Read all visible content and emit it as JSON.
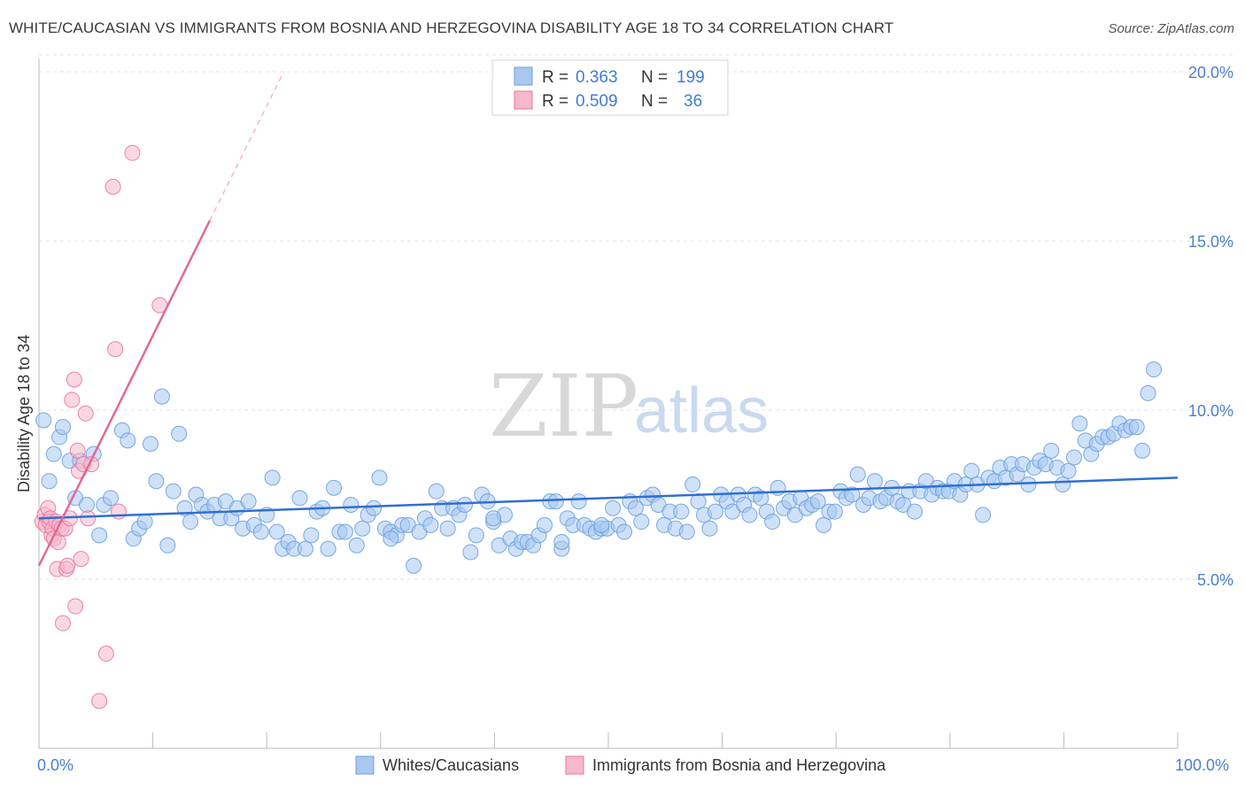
{
  "header": {
    "title": "WHITE/CAUCASIAN VS IMMIGRANTS FROM BOSNIA AND HERZEGOVINA DISABILITY AGE 18 TO 34 CORRELATION CHART",
    "source": "Source: ZipAtlas.com"
  },
  "watermark": {
    "zip": "ZIP",
    "atlas": "atlas"
  },
  "legend": {
    "rows": [
      {
        "r_label": "R =",
        "r_value": "0.363",
        "n_label": "N =",
        "n_value": "199",
        "color": "#a8c8f0"
      },
      {
        "r_label": "R =",
        "r_value": "0.509",
        "n_label": "N =",
        "n_value": "36",
        "color": "#f6b8cb"
      }
    ]
  },
  "bottom_legend": {
    "items": [
      {
        "label": "Whites/Caucasians",
        "color": "#a8c8f0"
      },
      {
        "label": "Immigrants from Bosnia and Herzegovina",
        "color": "#f6b8cb"
      }
    ]
  },
  "chart_data": {
    "type": "scatter",
    "title": "WHITE/CAUCASIAN VS IMMIGRANTS FROM BOSNIA AND HERZEGOVINA DISABILITY AGE 18 TO 34 CORRELATION CHART",
    "xlabel": "",
    "ylabel": "Disability Age 18 to 34",
    "xlim": [
      0,
      100
    ],
    "ylim": [
      0,
      20.5
    ],
    "x_tick_labels": [
      "0.0%",
      "100.0%"
    ],
    "y_ticks": [
      5,
      10,
      15,
      20
    ],
    "y_tick_labels": [
      "5.0%",
      "10.0%",
      "15.0%",
      "20.0%"
    ],
    "grid": true,
    "legend_position": "top-center",
    "series": [
      {
        "name": "Whites/Caucasians",
        "color": "#6a9fe0",
        "fill": "#a8c8f0",
        "trend": {
          "x": [
            0,
            100
          ],
          "y": [
            6.8,
            8.0
          ]
        },
        "points": [
          [
            0.4,
            9.7
          ],
          [
            0.9,
            7.9
          ],
          [
            1.3,
            8.7
          ],
          [
            1.8,
            9.2
          ],
          [
            2.1,
            9.5
          ],
          [
            2.7,
            8.5
          ],
          [
            3.2,
            7.4
          ],
          [
            3.6,
            8.5
          ],
          [
            4.2,
            7.2
          ],
          [
            4.8,
            8.7
          ],
          [
            5.3,
            6.3
          ],
          [
            5.7,
            7.2
          ],
          [
            6.3,
            7.4
          ],
          [
            7.3,
            9.4
          ],
          [
            7.8,
            9.1
          ],
          [
            8.3,
            6.2
          ],
          [
            8.8,
            6.5
          ],
          [
            9.3,
            6.7
          ],
          [
            9.8,
            9.0
          ],
          [
            10.3,
            7.9
          ],
          [
            10.8,
            10.4
          ],
          [
            11.3,
            6.0
          ],
          [
            11.8,
            7.6
          ],
          [
            12.3,
            9.3
          ],
          [
            12.8,
            7.1
          ],
          [
            13.3,
            6.7
          ],
          [
            13.8,
            7.5
          ],
          [
            14.3,
            7.2
          ],
          [
            14.8,
            7.0
          ],
          [
            15.4,
            7.2
          ],
          [
            15.9,
            6.8
          ],
          [
            16.4,
            7.3
          ],
          [
            16.9,
            6.8
          ],
          [
            17.4,
            7.1
          ],
          [
            17.9,
            6.5
          ],
          [
            18.4,
            7.3
          ],
          [
            18.9,
            6.6
          ],
          [
            19.5,
            6.4
          ],
          [
            20.0,
            6.9
          ],
          [
            20.5,
            8.0
          ],
          [
            20.9,
            6.4
          ],
          [
            21.4,
            5.9
          ],
          [
            21.9,
            6.1
          ],
          [
            22.4,
            5.9
          ],
          [
            22.9,
            7.4
          ],
          [
            23.4,
            5.9
          ],
          [
            23.9,
            6.3
          ],
          [
            24.4,
            7.0
          ],
          [
            24.9,
            7.1
          ],
          [
            25.4,
            5.9
          ],
          [
            25.9,
            7.7
          ],
          [
            26.4,
            6.4
          ],
          [
            26.9,
            6.4
          ],
          [
            27.4,
            7.2
          ],
          [
            27.9,
            6.0
          ],
          [
            28.4,
            6.5
          ],
          [
            28.9,
            6.9
          ],
          [
            29.4,
            7.1
          ],
          [
            29.9,
            8.0
          ],
          [
            30.4,
            6.5
          ],
          [
            30.9,
            6.4
          ],
          [
            31.4,
            6.3
          ],
          [
            31.9,
            6.6
          ],
          [
            32.4,
            6.6
          ],
          [
            32.9,
            5.4
          ],
          [
            33.4,
            6.4
          ],
          [
            33.9,
            6.8
          ],
          [
            34.4,
            6.6
          ],
          [
            34.9,
            7.6
          ],
          [
            35.4,
            7.1
          ],
          [
            35.9,
            6.5
          ],
          [
            36.4,
            7.1
          ],
          [
            36.9,
            6.9
          ],
          [
            37.4,
            7.2
          ],
          [
            37.9,
            5.8
          ],
          [
            38.4,
            6.3
          ],
          [
            38.9,
            7.5
          ],
          [
            39.4,
            7.3
          ],
          [
            39.9,
            6.7
          ],
          [
            40.4,
            6.0
          ],
          [
            40.9,
            6.9
          ],
          [
            41.4,
            6.2
          ],
          [
            41.9,
            5.9
          ],
          [
            42.4,
            6.1
          ],
          [
            42.9,
            6.1
          ],
          [
            43.4,
            6.0
          ],
          [
            43.9,
            6.3
          ],
          [
            44.4,
            6.6
          ],
          [
            44.9,
            7.3
          ],
          [
            45.4,
            7.3
          ],
          [
            45.9,
            5.9
          ],
          [
            46.4,
            6.8
          ],
          [
            46.9,
            6.6
          ],
          [
            47.4,
            7.3
          ],
          [
            47.9,
            6.6
          ],
          [
            48.4,
            6.5
          ],
          [
            48.9,
            6.4
          ],
          [
            49.4,
            6.5
          ],
          [
            49.9,
            6.5
          ],
          [
            50.4,
            7.1
          ],
          [
            50.9,
            6.6
          ],
          [
            51.4,
            6.4
          ],
          [
            51.9,
            7.3
          ],
          [
            52.4,
            7.1
          ],
          [
            52.9,
            6.7
          ],
          [
            53.4,
            7.4
          ],
          [
            53.9,
            7.5
          ],
          [
            54.4,
            7.2
          ],
          [
            54.9,
            6.6
          ],
          [
            55.4,
            7.0
          ],
          [
            55.9,
            6.5
          ],
          [
            56.4,
            7.0
          ],
          [
            56.9,
            6.4
          ],
          [
            57.4,
            7.8
          ],
          [
            57.9,
            7.3
          ],
          [
            58.4,
            6.9
          ],
          [
            58.9,
            6.5
          ],
          [
            59.4,
            7.0
          ],
          [
            59.9,
            7.5
          ],
          [
            60.4,
            7.3
          ],
          [
            60.9,
            7.0
          ],
          [
            61.4,
            7.5
          ],
          [
            61.9,
            7.2
          ],
          [
            62.4,
            6.9
          ],
          [
            62.9,
            7.5
          ],
          [
            63.4,
            7.4
          ],
          [
            63.9,
            7.0
          ],
          [
            64.4,
            6.7
          ],
          [
            64.9,
            7.7
          ],
          [
            65.4,
            7.1
          ],
          [
            65.9,
            7.3
          ],
          [
            66.4,
            6.9
          ],
          [
            66.9,
            7.4
          ],
          [
            67.4,
            7.1
          ],
          [
            67.9,
            7.2
          ],
          [
            68.4,
            7.3
          ],
          [
            68.9,
            6.6
          ],
          [
            69.4,
            7.0
          ],
          [
            69.9,
            7.0
          ],
          [
            70.4,
            7.6
          ],
          [
            70.9,
            7.4
          ],
          [
            71.4,
            7.5
          ],
          [
            71.9,
            8.1
          ],
          [
            72.4,
            7.2
          ],
          [
            72.9,
            7.4
          ],
          [
            73.4,
            7.9
          ],
          [
            73.9,
            7.3
          ],
          [
            74.4,
            7.4
          ],
          [
            74.9,
            7.7
          ],
          [
            75.4,
            7.3
          ],
          [
            75.9,
            7.2
          ],
          [
            76.4,
            7.6
          ],
          [
            76.9,
            7.0
          ],
          [
            77.4,
            7.6
          ],
          [
            77.9,
            7.9
          ],
          [
            78.4,
            7.5
          ],
          [
            78.9,
            7.7
          ],
          [
            79.4,
            7.6
          ],
          [
            79.9,
            7.6
          ],
          [
            80.4,
            7.9
          ],
          [
            80.9,
            7.5
          ],
          [
            81.4,
            7.8
          ],
          [
            81.9,
            8.2
          ],
          [
            82.4,
            7.8
          ],
          [
            82.9,
            6.9
          ],
          [
            83.4,
            8.0
          ],
          [
            83.9,
            7.9
          ],
          [
            84.4,
            8.3
          ],
          [
            84.9,
            8.0
          ],
          [
            85.4,
            8.4
          ],
          [
            85.9,
            8.1
          ],
          [
            86.4,
            8.4
          ],
          [
            86.9,
            7.8
          ],
          [
            87.4,
            8.3
          ],
          [
            87.9,
            8.5
          ],
          [
            88.4,
            8.4
          ],
          [
            88.9,
            8.8
          ],
          [
            89.4,
            8.3
          ],
          [
            89.9,
            7.8
          ],
          [
            90.4,
            8.2
          ],
          [
            90.9,
            8.6
          ],
          [
            91.4,
            9.6
          ],
          [
            91.9,
            9.1
          ],
          [
            92.4,
            8.7
          ],
          [
            92.9,
            9.0
          ],
          [
            93.4,
            9.2
          ],
          [
            93.9,
            9.2
          ],
          [
            94.4,
            9.3
          ],
          [
            94.9,
            9.6
          ],
          [
            95.4,
            9.4
          ],
          [
            95.9,
            9.5
          ],
          [
            96.4,
            9.5
          ],
          [
            96.9,
            8.8
          ],
          [
            97.4,
            10.5
          ],
          [
            97.9,
            11.2
          ],
          [
            45.9,
            6.1
          ],
          [
            30.9,
            6.2
          ],
          [
            39.9,
            6.8
          ],
          [
            49.4,
            6.6
          ]
        ]
      },
      {
        "name": "Immigrants from Bosnia and Herzegovina",
        "color": "#e8769e",
        "fill": "#f6b8cb",
        "trend_solid": {
          "x": [
            0,
            15
          ],
          "y": [
            5.4,
            15.6
          ]
        },
        "trend_dashed": {
          "x": [
            15,
            21.5
          ],
          "y": [
            15.6,
            20.0
          ]
        },
        "points": [
          [
            0.3,
            6.7
          ],
          [
            0.5,
            6.9
          ],
          [
            0.6,
            6.6
          ],
          [
            0.8,
            7.1
          ],
          [
            0.9,
            6.7
          ],
          [
            1.0,
            6.8
          ],
          [
            1.1,
            6.3
          ],
          [
            1.2,
            6.5
          ],
          [
            1.3,
            6.2
          ],
          [
            1.5,
            6.7
          ],
          [
            1.6,
            5.3
          ],
          [
            1.7,
            6.1
          ],
          [
            1.8,
            6.6
          ],
          [
            2.0,
            6.5
          ],
          [
            2.1,
            3.7
          ],
          [
            2.3,
            6.5
          ],
          [
            2.4,
            5.3
          ],
          [
            2.5,
            5.4
          ],
          [
            2.7,
            6.8
          ],
          [
            2.9,
            10.3
          ],
          [
            3.1,
            10.9
          ],
          [
            3.2,
            4.2
          ],
          [
            3.4,
            8.8
          ],
          [
            3.5,
            8.2
          ],
          [
            3.7,
            5.6
          ],
          [
            3.9,
            8.4
          ],
          [
            4.1,
            9.9
          ],
          [
            4.3,
            6.8
          ],
          [
            4.6,
            8.4
          ],
          [
            5.3,
            1.4
          ],
          [
            5.9,
            2.8
          ],
          [
            6.5,
            16.6
          ],
          [
            6.7,
            11.8
          ],
          [
            7.0,
            7.0
          ],
          [
            8.2,
            17.6
          ],
          [
            10.6,
            13.1
          ]
        ]
      }
    ]
  }
}
